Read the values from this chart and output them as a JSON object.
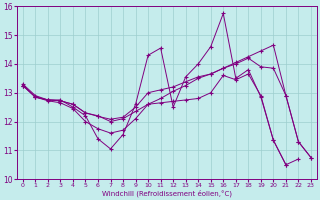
{
  "xlabel": "Windchill (Refroidissement éolien,°C)",
  "background_color": "#c5ecec",
  "line_color": "#800080",
  "grid_color": "#9ecece",
  "xlim_min": -0.5,
  "xlim_max": 23.5,
  "ylim_min": 10,
  "ylim_max": 16,
  "yticks": [
    10,
    11,
    12,
    13,
    14,
    15,
    16
  ],
  "xticks": [
    0,
    1,
    2,
    3,
    4,
    5,
    6,
    7,
    8,
    9,
    10,
    11,
    12,
    13,
    14,
    15,
    16,
    17,
    18,
    19,
    20,
    21,
    22,
    23
  ],
  "series": [
    {
      "x": [
        0,
        1,
        2,
        3,
        4,
        5,
        6,
        7,
        8,
        9,
        10,
        11,
        12,
        13,
        14,
        15,
        16,
        17,
        18,
        19,
        20,
        21,
        22
      ],
      "y": [
        13.3,
        12.9,
        12.75,
        12.75,
        12.5,
        12.2,
        11.4,
        11.05,
        11.55,
        12.6,
        14.3,
        14.55,
        12.5,
        13.55,
        14.0,
        14.6,
        15.75,
        13.5,
        13.8,
        12.85,
        11.35,
        10.5,
        10.7
      ]
    },
    {
      "x": [
        0,
        1,
        2,
        3,
        4,
        5,
        6,
        7,
        8,
        9,
        10,
        11,
        12,
        13,
        14,
        15,
        16,
        17,
        18,
        19,
        20,
        21,
        22,
        23
      ],
      "y": [
        13.25,
        12.85,
        12.75,
        12.72,
        12.6,
        12.3,
        12.2,
        12.0,
        12.1,
        12.35,
        12.6,
        12.8,
        13.05,
        13.25,
        13.5,
        13.65,
        13.85,
        14.05,
        14.25,
        14.45,
        14.65,
        12.9,
        11.3,
        10.75
      ]
    },
    {
      "x": [
        0,
        1,
        2,
        3,
        4,
        5,
        6,
        7,
        8,
        9,
        10,
        11,
        12,
        13,
        14,
        15,
        16,
        17,
        18,
        19,
        20,
        21,
        22,
        23
      ],
      "y": [
        13.25,
        12.85,
        12.75,
        12.72,
        12.6,
        12.3,
        12.18,
        12.08,
        12.15,
        12.5,
        13.0,
        13.1,
        13.2,
        13.38,
        13.55,
        13.65,
        13.85,
        14.0,
        14.2,
        13.9,
        13.85,
        12.9,
        11.3,
        10.75
      ]
    },
    {
      "x": [
        0,
        1,
        2,
        3,
        4,
        5,
        6,
        7,
        8,
        9,
        10,
        11,
        12,
        13,
        14,
        15,
        16,
        17,
        18,
        19,
        20,
        21
      ],
      "y": [
        13.25,
        12.85,
        12.72,
        12.65,
        12.45,
        12.0,
        11.75,
        11.6,
        11.7,
        12.1,
        12.6,
        12.65,
        12.7,
        12.75,
        12.8,
        13.0,
        13.6,
        13.45,
        13.65,
        12.9,
        11.35,
        10.5
      ]
    }
  ]
}
